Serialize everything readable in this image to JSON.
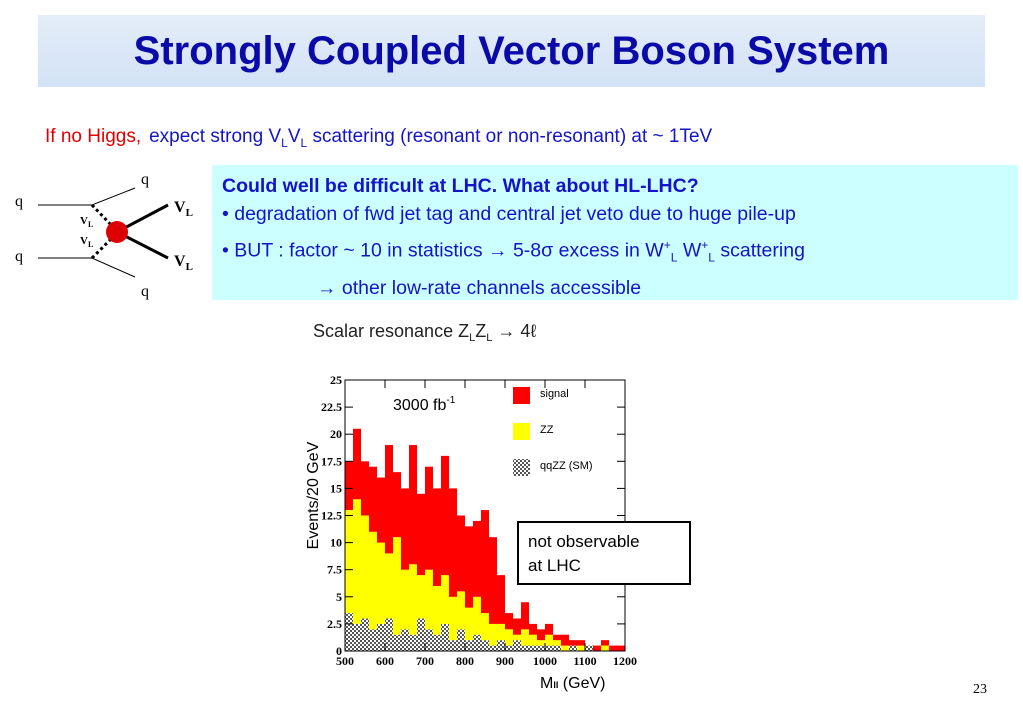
{
  "title": "Strongly Coupled Vector Boson System",
  "intro": {
    "lead": "If no Higgs,",
    "parts": [
      "expect  strong V",
      "L",
      "V",
      "L",
      " scattering (resonant or  non-resonant) at ~ 1TeV"
    ]
  },
  "diagram": {
    "labels": [
      "q",
      "q",
      "q",
      "q"
    ],
    "boson_inner": [
      "V",
      "L",
      "V",
      "L"
    ],
    "boson_outer": [
      "V",
      "L",
      "V",
      "L"
    ]
  },
  "box": {
    "heading": "Could well be difficult at LHC. What about HL-LHC?",
    "line1": "• degradation of fwd jet tag and central jet veto due to huge pile-up",
    "line2": [
      "• BUT : factor ~ 10 in statistics ",
      "→",
      " 5-8",
      "σ",
      " excess in W",
      "+",
      "L",
      " W",
      "+",
      "L",
      " scattering"
    ],
    "line3": [
      "→",
      " other low-rate channels accessible"
    ]
  },
  "chart_data": {
    "type": "histogram",
    "title": [
      "Scalar resonance Z",
      "L",
      "Z",
      "L",
      " → 4ℓ"
    ],
    "y_label": "Events/20 GeV",
    "x_label": [
      "M",
      "ll",
      " (GeV)"
    ],
    "annotation": [
      "3000 fb",
      "-1"
    ],
    "note": [
      "not observable",
      "at LHC"
    ],
    "bins": [
      500,
      520,
      540,
      560,
      580,
      600,
      620,
      640,
      660,
      680,
      700,
      720,
      740,
      760,
      780,
      800,
      820,
      840,
      860,
      880,
      900,
      920,
      940,
      960,
      980,
      1000,
      1020,
      1040,
      1060,
      1080,
      1100,
      1120,
      1140,
      1160,
      1180,
      1200
    ],
    "series": [
      {
        "name": "signal",
        "color": "#ff0000",
        "values": [
          4.5,
          6.5,
          5,
          6,
          6,
          10,
          6,
          7.5,
          11,
          7.5,
          9.5,
          9,
          11,
          10,
          7,
          7.5,
          7,
          9.5,
          8,
          4.5,
          1.5,
          1.5,
          2.5,
          1,
          1,
          1,
          0.5,
          1,
          0.5,
          0.5,
          0,
          0.5,
          0.5,
          0.5,
          0.5
        ]
      },
      {
        "name": "ZZ",
        "color": "#ffff00",
        "values": [
          9.5,
          11.5,
          9.5,
          9,
          7.5,
          6,
          9,
          5.5,
          6.5,
          4,
          5.5,
          4.5,
          4.5,
          4,
          3.5,
          3,
          3.5,
          2.5,
          2,
          1.5,
          1.5,
          0.5,
          1.5,
          1,
          0.5,
          1,
          0.5,
          0.5,
          0,
          0.5,
          0,
          0,
          0.5,
          0,
          0
        ]
      },
      {
        "name": "qqZZ (SM)",
        "color": "#808080",
        "values": [
          3.5,
          2.5,
          3,
          2,
          2.5,
          3,
          1.5,
          2,
          1.5,
          3,
          2,
          1.5,
          2.5,
          1,
          2,
          1,
          1.5,
          1,
          0.5,
          1,
          0.5,
          1,
          0.5,
          0.5,
          0.5,
          0.5,
          0.5,
          0,
          0.5,
          0,
          0.5,
          0,
          0,
          0,
          0
        ]
      }
    ],
    "stacked": true,
    "xlim": [
      500,
      1200
    ],
    "ylim": [
      0,
      25
    ],
    "xticks": [
      500,
      600,
      700,
      800,
      900,
      1000,
      1100,
      1200
    ],
    "yticks": [
      0,
      2.5,
      5,
      7.5,
      10,
      12.5,
      15,
      17.5,
      20,
      22.5,
      25
    ]
  },
  "page_number": "23"
}
